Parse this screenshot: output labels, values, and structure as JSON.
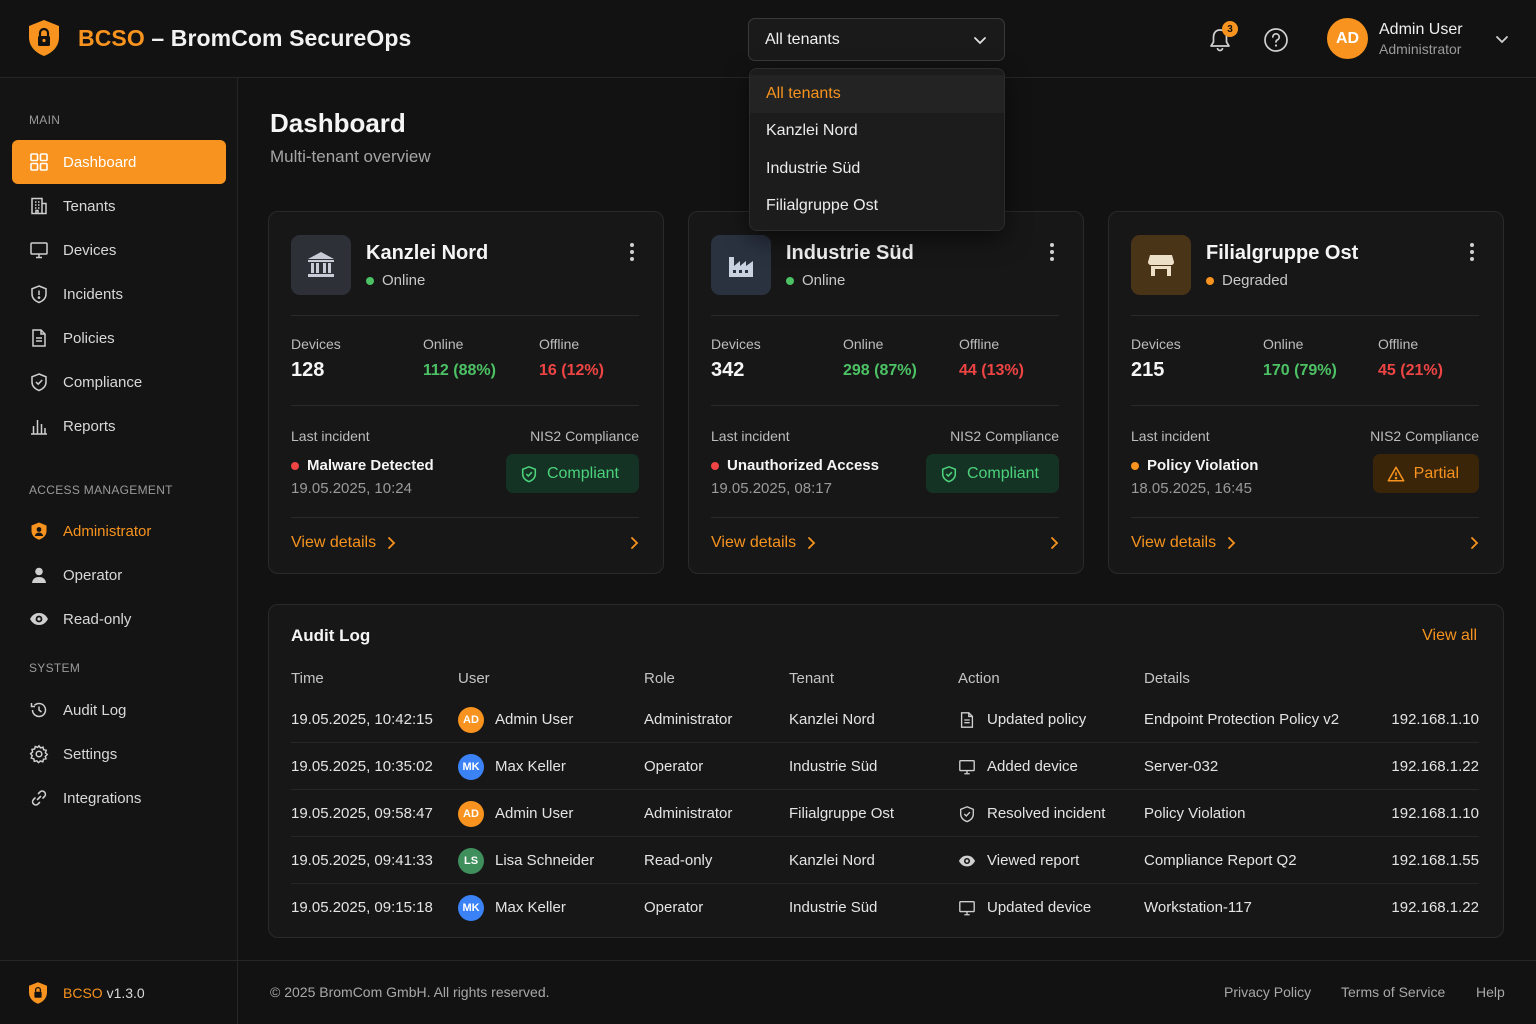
{
  "app": {
    "brand_prefix": "BCSO",
    "brand_suffix": " – BromCom SecureOps",
    "version": "v1.3.0",
    "accent": "#f7931e"
  },
  "header": {
    "tenant_select": {
      "value": "All tenants",
      "options": [
        "All tenants",
        "Kanzlei Nord",
        "Industrie Süd",
        "Filialgruppe Ost"
      ]
    },
    "notifications_count": "3",
    "user": {
      "initials": "AD",
      "name": "Admin User",
      "role": "Administrator"
    }
  },
  "sidebar": {
    "sections": [
      {
        "title": "MAIN",
        "items": [
          {
            "label": "Dashboard",
            "icon": "grid-icon",
            "active": true
          },
          {
            "label": "Tenants",
            "icon": "building-icon"
          },
          {
            "label": "Devices",
            "icon": "monitor-icon"
          },
          {
            "label": "Incidents",
            "icon": "shield-alert-icon"
          },
          {
            "label": "Policies",
            "icon": "document-icon"
          },
          {
            "label": "Compliance",
            "icon": "shield-check-icon"
          },
          {
            "label": "Reports",
            "icon": "bar-chart-icon"
          }
        ]
      },
      {
        "title": "ACCESS MANAGEMENT",
        "items": [
          {
            "label": "Administrator",
            "icon": "admin-shield-icon",
            "highlight": true
          },
          {
            "label": "Operator",
            "icon": "user-icon"
          },
          {
            "label": "Read-only",
            "icon": "eye-icon"
          }
        ]
      },
      {
        "title": "SYSTEM",
        "items": [
          {
            "label": "Audit Log",
            "icon": "history-icon"
          },
          {
            "label": "Settings",
            "icon": "gear-icon"
          },
          {
            "label": "Integrations",
            "icon": "link-icon"
          }
        ]
      }
    ]
  },
  "page": {
    "title": "Dashboard",
    "subtitle": "Multi-tenant overview"
  },
  "labels": {
    "devices": "Devices",
    "online": "Online",
    "offline": "Offline",
    "last_incident": "Last incident",
    "nis2": "NIS2 Compliance",
    "view_details": "View details"
  },
  "tenants": [
    {
      "name": "Kanzlei Nord",
      "icon": "bank-icon",
      "status": "Online",
      "status_color": "#4cc265",
      "devices": "128",
      "online": "112 (88%)",
      "offline": "16 (12%)",
      "incident": "Malware Detected",
      "incident_color": "#ef4444",
      "incident_date": "19.05.2025, 10:24",
      "compliance": "Compliant",
      "compliance_state": "ok"
    },
    {
      "name": "Industrie Süd",
      "icon": "factory-icon",
      "status": "Online",
      "status_color": "#4cc265",
      "devices": "342",
      "online": "298 (87%)",
      "offline": "44 (13%)",
      "incident": "Unauthorized Access",
      "incident_color": "#ef4444",
      "incident_date": "19.05.2025, 08:17",
      "compliance": "Compliant",
      "compliance_state": "ok"
    },
    {
      "name": "Filialgruppe Ost",
      "icon": "store-icon",
      "status": "Degraded",
      "status_color": "#f7931e",
      "devices": "215",
      "online": "170 (79%)",
      "offline": "45 (21%)",
      "incident": "Policy Violation",
      "incident_color": "#f7931e",
      "incident_date": "18.05.2025, 16:45",
      "compliance": "Partial",
      "compliance_state": "partial"
    }
  ],
  "audit": {
    "title": "Audit Log",
    "view_all": "View all",
    "columns": [
      "Time",
      "User",
      "Role",
      "Tenant",
      "Action",
      "Details"
    ],
    "rows": [
      {
        "time": "19.05.2025, 10:42:15",
        "initials": "AD",
        "avatar_color": "#f7931e",
        "user": "Admin User",
        "role": "Administrator",
        "tenant": "Kanzlei Nord",
        "action_icon": "document-icon",
        "action": "Updated policy",
        "details": "Endpoint Protection Policy v2",
        "ip": "192.168.1.10"
      },
      {
        "time": "19.05.2025, 10:35:02",
        "initials": "MK",
        "avatar_color": "#3b82f6",
        "user": "Max Keller",
        "role": "Operator",
        "tenant": "Industrie Süd",
        "action_icon": "monitor-icon",
        "action": "Added device",
        "details": "Server-032",
        "ip": "192.168.1.22"
      },
      {
        "time": "19.05.2025, 09:58:47",
        "initials": "AD",
        "avatar_color": "#f7931e",
        "user": "Admin User",
        "role": "Administrator",
        "tenant": "Filialgruppe Ost",
        "action_icon": "shield-check-icon",
        "action": "Resolved incident",
        "details": "Policy Violation",
        "ip": "192.168.1.10"
      },
      {
        "time": "19.05.2025, 09:41:33",
        "initials": "LS",
        "avatar_color": "#3f8f5c",
        "user": "Lisa Schneider",
        "role": "Read-only",
        "tenant": "Kanzlei Nord",
        "action_icon": "eye-icon",
        "action": "Viewed report",
        "details": "Compliance Report Q2",
        "ip": "192.168.1.55"
      },
      {
        "time": "19.05.2025, 09:15:18",
        "initials": "MK",
        "avatar_color": "#3b82f6",
        "user": "Max Keller",
        "role": "Operator",
        "tenant": "Industrie Süd",
        "action_icon": "monitor-icon",
        "action": "Updated device",
        "details": "Workstation-117",
        "ip": "192.168.1.22"
      }
    ]
  },
  "footer": {
    "copyright": "© 2025 BromCom GmbH. All rights reserved.",
    "links": [
      "Privacy Policy",
      "Terms of Service",
      "Help"
    ]
  }
}
